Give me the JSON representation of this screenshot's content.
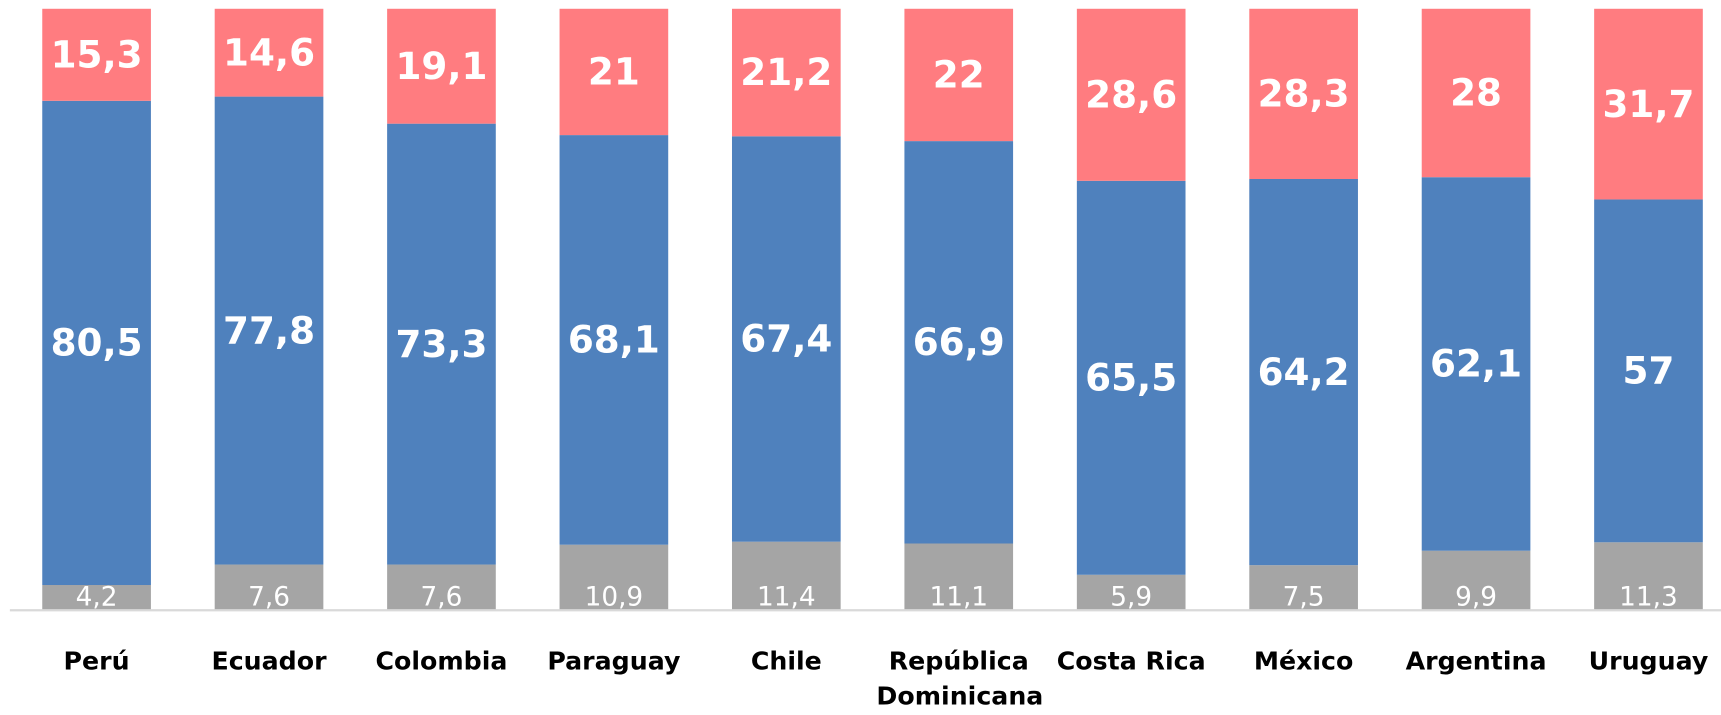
{
  "chart_data": {
    "type": "stacked-bar",
    "categories": [
      "Perú",
      "Ecuador",
      "Colombia",
      "Paraguay",
      "Chile",
      "República Dominicana",
      "Costa Rica",
      "México",
      "Argentina",
      "Uruguay"
    ],
    "ylim": [
      0,
      100
    ],
    "series": [
      {
        "color": "#a5a5a5",
        "values": [
          4.2,
          7.6,
          7.6,
          10.9,
          11.4,
          11.1,
          5.9,
          7.5,
          9.9,
          11.3
        ],
        "value_labels": [
          "4,2",
          "7,6",
          "7,6",
          "10,9",
          "11,4",
          "11,1",
          "5,9",
          "7,5",
          "9,9",
          "11,3"
        ]
      },
      {
        "color": "#4f81bd",
        "values": [
          80.5,
          77.8,
          73.3,
          68.1,
          67.4,
          66.9,
          65.5,
          64.2,
          62.1,
          57
        ],
        "value_labels": [
          "80,5",
          "77,8",
          "73,3",
          "68,1",
          "67,4",
          "66,9",
          "65,5",
          "64,2",
          "62,1",
          "57"
        ]
      },
      {
        "color": "#ff7c80",
        "values": [
          15.3,
          14.6,
          19.1,
          21,
          21.2,
          22,
          28.6,
          28.3,
          28,
          31.7
        ],
        "value_labels": [
          "15,3",
          "14,6",
          "19,1",
          "21",
          "21,2",
          "22",
          "28,6",
          "28,3",
          "28",
          "31,7"
        ]
      }
    ]
  }
}
